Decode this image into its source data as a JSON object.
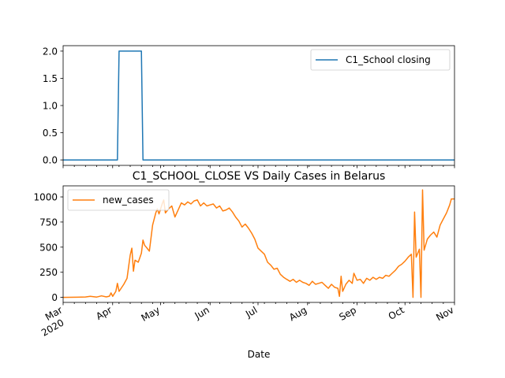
{
  "chart_data": [
    {
      "type": "line",
      "title": "",
      "xlabel": "",
      "ylabel": "",
      "xlim": [
        "2020-03-01",
        "2020-11-01"
      ],
      "ylim": [
        -0.1,
        2.1
      ],
      "yticks": [
        0.0,
        0.5,
        1.0,
        1.5,
        2.0
      ],
      "ytick_labels": [
        "0.0",
        "0.5",
        "1.0",
        "1.5",
        "2.0"
      ],
      "legend_position": "upper-right",
      "grid": false,
      "series": [
        {
          "name": "C1_School closing",
          "color": "#1f77b4",
          "points": [
            [
              "2020-03-01",
              0
            ],
            [
              "2020-04-04",
              0
            ],
            [
              "2020-04-05",
              2
            ],
            [
              "2020-04-19",
              2
            ],
            [
              "2020-04-20",
              0
            ],
            [
              "2020-11-01",
              0
            ]
          ]
        }
      ]
    },
    {
      "type": "line",
      "title": "C1_SCHOOL_CLOSE VS Daily Cases in Belarus",
      "xlabel": "Date",
      "ylabel": "",
      "xlim": [
        "2020-03-01",
        "2020-11-01"
      ],
      "ylim": [
        -50,
        1110
      ],
      "yticks": [
        0,
        250,
        500,
        750,
        1000
      ],
      "ytick_labels": [
        "0",
        "250",
        "500",
        "750",
        "1000"
      ],
      "xtick_labels": [
        {
          "date": "2020-03-01",
          "label": "Mar",
          "sublabel": "2020"
        },
        {
          "date": "2020-04-01",
          "label": "Apr"
        },
        {
          "date": "2020-05-01",
          "label": "May"
        },
        {
          "date": "2020-06-01",
          "label": "Jun"
        },
        {
          "date": "2020-07-01",
          "label": "Jul"
        },
        {
          "date": "2020-08-01",
          "label": "Aug"
        },
        {
          "date": "2020-09-01",
          "label": "Sep"
        },
        {
          "date": "2020-10-01",
          "label": "Oct"
        },
        {
          "date": "2020-11-01",
          "label": "Nov"
        }
      ],
      "legend_position": "upper-left",
      "grid": false,
      "series": [
        {
          "name": "new_cases",
          "color": "#ff7f0e",
          "points": [
            [
              "2020-03-01",
              0
            ],
            [
              "2020-03-10",
              2
            ],
            [
              "2020-03-15",
              4
            ],
            [
              "2020-03-18",
              10
            ],
            [
              "2020-03-22",
              3
            ],
            [
              "2020-03-25",
              15
            ],
            [
              "2020-03-28",
              5
            ],
            [
              "2020-03-30",
              12
            ],
            [
              "2020-03-31",
              45
            ],
            [
              "2020-04-01",
              10
            ],
            [
              "2020-04-03",
              60
            ],
            [
              "2020-04-04",
              140
            ],
            [
              "2020-04-05",
              60
            ],
            [
              "2020-04-08",
              130
            ],
            [
              "2020-04-10",
              190
            ],
            [
              "2020-04-12",
              420
            ],
            [
              "2020-04-13",
              490
            ],
            [
              "2020-04-14",
              260
            ],
            [
              "2020-04-15",
              370
            ],
            [
              "2020-04-17",
              350
            ],
            [
              "2020-04-19",
              440
            ],
            [
              "2020-04-20",
              570
            ],
            [
              "2020-04-21",
              520
            ],
            [
              "2020-04-22",
              500
            ],
            [
              "2020-04-24",
              460
            ],
            [
              "2020-04-26",
              720
            ],
            [
              "2020-04-28",
              840
            ],
            [
              "2020-04-29",
              880
            ],
            [
              "2020-04-30",
              830
            ],
            [
              "2020-05-02",
              930
            ],
            [
              "2020-05-03",
              970
            ],
            [
              "2020-05-04",
              840
            ],
            [
              "2020-05-06",
              880
            ],
            [
              "2020-05-08",
              910
            ],
            [
              "2020-05-10",
              800
            ],
            [
              "2020-05-12",
              870
            ],
            [
              "2020-05-14",
              940
            ],
            [
              "2020-05-16",
              920
            ],
            [
              "2020-05-18",
              950
            ],
            [
              "2020-05-20",
              930
            ],
            [
              "2020-05-22",
              960
            ],
            [
              "2020-05-24",
              970
            ],
            [
              "2020-05-26",
              910
            ],
            [
              "2020-05-28",
              940
            ],
            [
              "2020-05-30",
              910
            ],
            [
              "2020-06-01",
              920
            ],
            [
              "2020-06-03",
              930
            ],
            [
              "2020-06-05",
              890
            ],
            [
              "2020-06-07",
              910
            ],
            [
              "2020-06-09",
              860
            ],
            [
              "2020-06-11",
              870
            ],
            [
              "2020-06-13",
              890
            ],
            [
              "2020-06-15",
              850
            ],
            [
              "2020-06-17",
              800
            ],
            [
              "2020-06-19",
              760
            ],
            [
              "2020-06-21",
              700
            ],
            [
              "2020-06-23",
              730
            ],
            [
              "2020-06-25",
              690
            ],
            [
              "2020-06-27",
              640
            ],
            [
              "2020-06-29",
              580
            ],
            [
              "2020-07-01",
              490
            ],
            [
              "2020-07-03",
              460
            ],
            [
              "2020-07-05",
              430
            ],
            [
              "2020-07-07",
              350
            ],
            [
              "2020-07-09",
              320
            ],
            [
              "2020-07-11",
              280
            ],
            [
              "2020-07-13",
              290
            ],
            [
              "2020-07-15",
              230
            ],
            [
              "2020-07-17",
              200
            ],
            [
              "2020-07-19",
              180
            ],
            [
              "2020-07-21",
              160
            ],
            [
              "2020-07-23",
              180
            ],
            [
              "2020-07-25",
              150
            ],
            [
              "2020-07-27",
              170
            ],
            [
              "2020-07-29",
              150
            ],
            [
              "2020-07-31",
              140
            ],
            [
              "2020-08-02",
              120
            ],
            [
              "2020-08-04",
              160
            ],
            [
              "2020-08-06",
              130
            ],
            [
              "2020-08-08",
              140
            ],
            [
              "2020-08-10",
              150
            ],
            [
              "2020-08-12",
              120
            ],
            [
              "2020-08-14",
              90
            ],
            [
              "2020-08-16",
              130
            ],
            [
              "2020-08-18",
              100
            ],
            [
              "2020-08-20",
              90
            ],
            [
              "2020-08-21",
              10
            ],
            [
              "2020-08-22",
              210
            ],
            [
              "2020-08-23",
              60
            ],
            [
              "2020-08-25",
              130
            ],
            [
              "2020-08-27",
              170
            ],
            [
              "2020-08-29",
              140
            ],
            [
              "2020-08-30",
              240
            ],
            [
              "2020-09-01",
              170
            ],
            [
              "2020-09-03",
              180
            ],
            [
              "2020-09-05",
              140
            ],
            [
              "2020-09-07",
              190
            ],
            [
              "2020-09-09",
              170
            ],
            [
              "2020-09-11",
              200
            ],
            [
              "2020-09-13",
              180
            ],
            [
              "2020-09-15",
              200
            ],
            [
              "2020-09-17",
              190
            ],
            [
              "2020-09-19",
              220
            ],
            [
              "2020-09-21",
              210
            ],
            [
              "2020-09-23",
              240
            ],
            [
              "2020-09-25",
              270
            ],
            [
              "2020-09-27",
              310
            ],
            [
              "2020-09-29",
              330
            ],
            [
              "2020-10-01",
              360
            ],
            [
              "2020-10-03",
              400
            ],
            [
              "2020-10-05",
              430
            ],
            [
              "2020-10-06",
              0
            ],
            [
              "2020-10-07",
              850
            ],
            [
              "2020-10-08",
              400
            ],
            [
              "2020-10-10",
              480
            ],
            [
              "2020-10-11",
              0
            ],
            [
              "2020-10-12",
              1070
            ],
            [
              "2020-10-13",
              470
            ],
            [
              "2020-10-15",
              580
            ],
            [
              "2020-10-17",
              620
            ],
            [
              "2020-10-19",
              650
            ],
            [
              "2020-10-21",
              600
            ],
            [
              "2020-10-23",
              720
            ],
            [
              "2020-10-25",
              780
            ],
            [
              "2020-10-27",
              840
            ],
            [
              "2020-10-29",
              920
            ],
            [
              "2020-10-30",
              980
            ],
            [
              "2020-11-01",
              980
            ]
          ]
        }
      ]
    }
  ]
}
